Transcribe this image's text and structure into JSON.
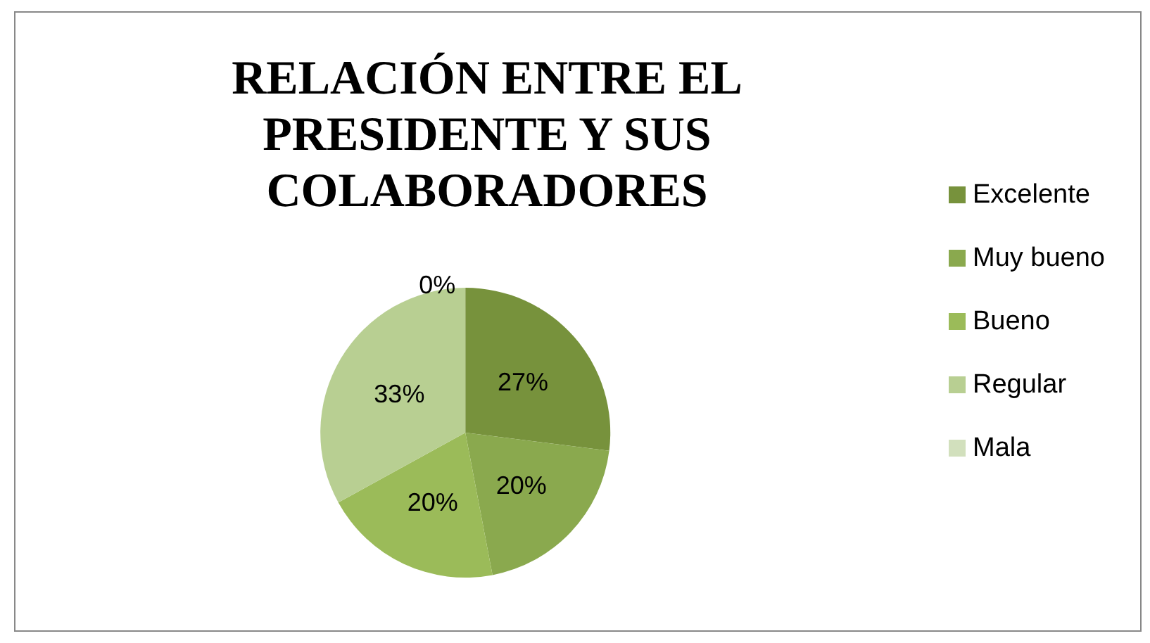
{
  "chart_data": {
    "type": "pie",
    "title": "RELACIÓN ENTRE EL\nPRESIDENTE Y SUS\nCOLABORADORES",
    "categories": [
      "Excelente",
      "Muy bueno",
      "Bueno",
      "Regular",
      "Mala"
    ],
    "values": [
      27,
      20,
      20,
      33,
      0
    ],
    "value_labels": [
      "27%",
      "20%",
      "20%",
      "33%",
      "0%"
    ],
    "colors": [
      "#77923c",
      "#8aa94e",
      "#9bbb59",
      "#b8cf92",
      "#d2e0bd"
    ],
    "legend": "right"
  }
}
